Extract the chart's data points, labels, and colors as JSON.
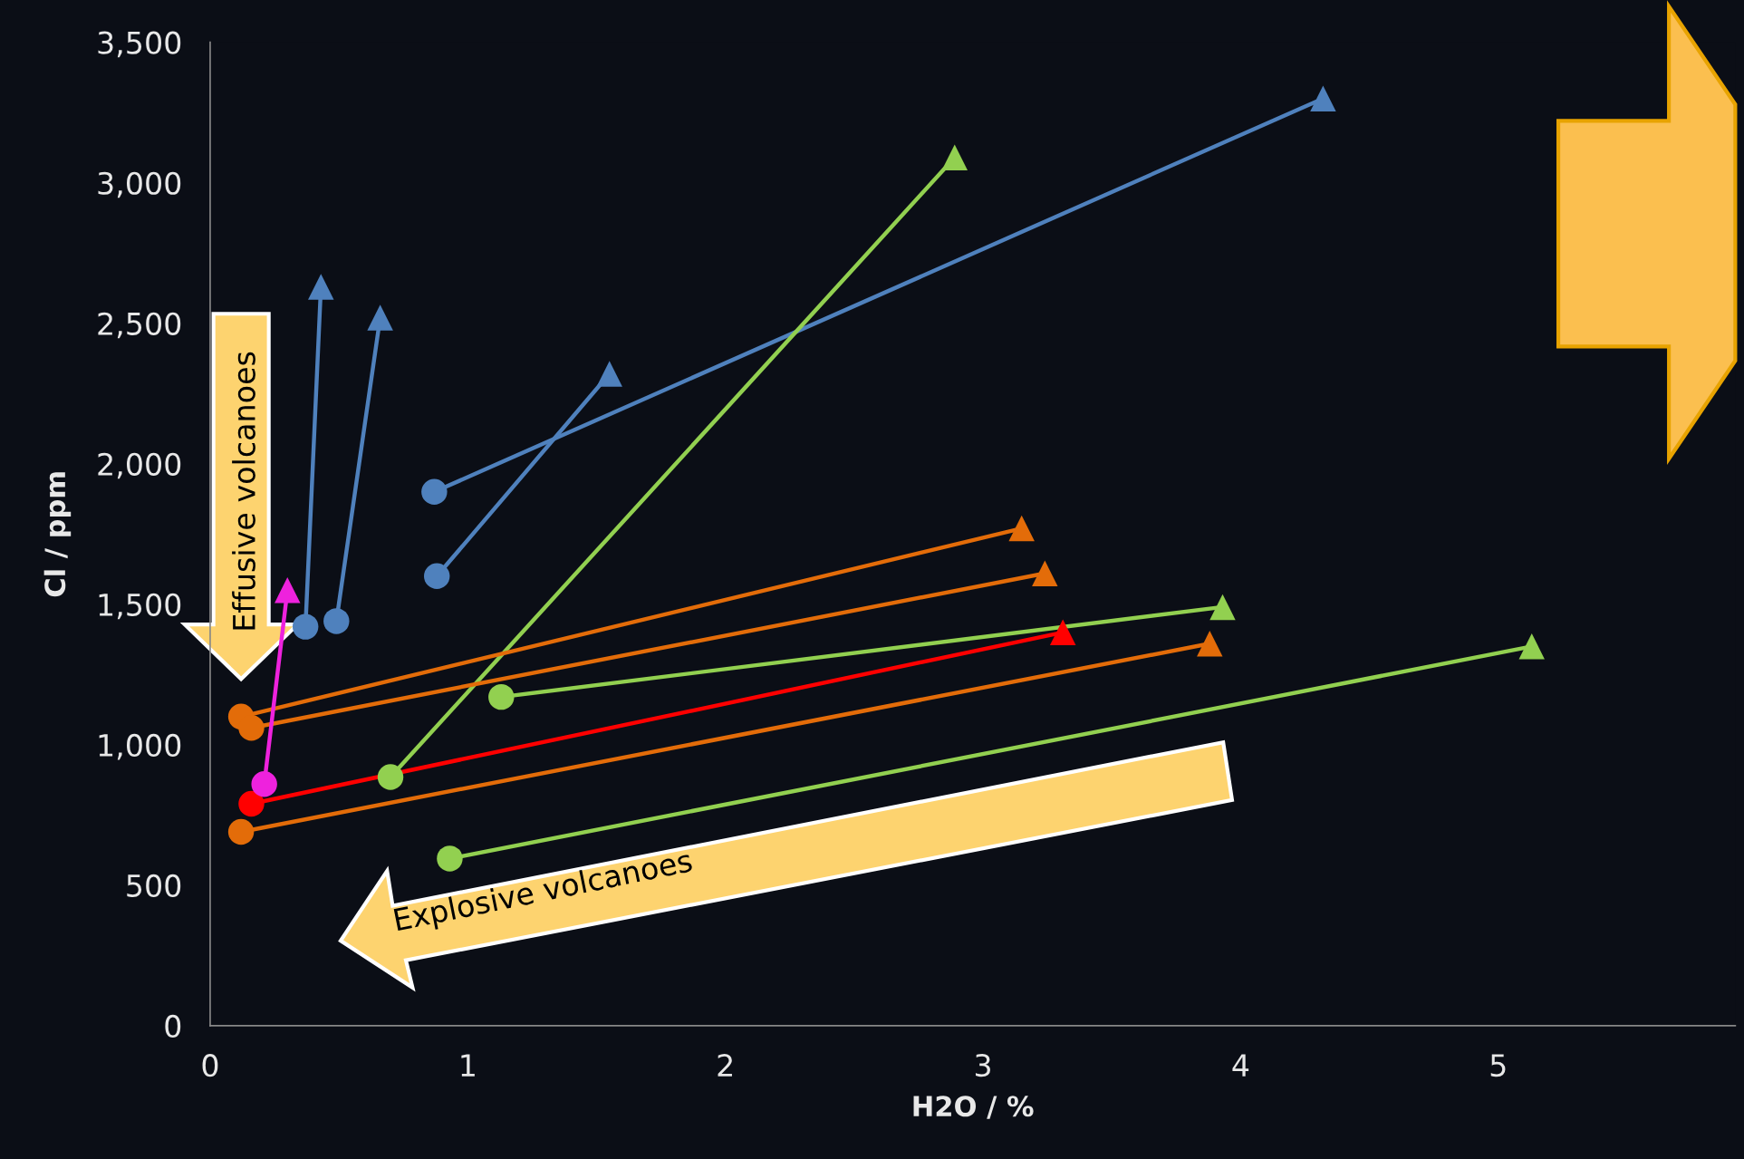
{
  "chart_data": {
    "type": "line",
    "xlabel": "H2O / %",
    "ylabel": "Cl / ppm",
    "xlim": [
      0,
      5.92
    ],
    "xticks": [
      0,
      1,
      2,
      3,
      4,
      5
    ],
    "ylim": [
      0,
      3500
    ],
    "yticks": [
      0,
      500,
      {
        "value": 1000,
        "label": "1,000"
      },
      {
        "value": 1500,
        "label": "1,500"
      },
      {
        "value": 2000,
        "label": "2,000"
      },
      {
        "value": 2500,
        "label": "2,500"
      },
      {
        "value": 3000,
        "label": "3,000"
      },
      {
        "value": 3500,
        "label": "3,500"
      }
    ],
    "grid": false,
    "legend": false,
    "annotations": [
      "Effusive volcanoes",
      "Explosive volcanoes"
    ],
    "series": [
      {
        "marker": "none",
        "color": "#4f81bd",
        "x": [
          0.87,
          4.32
        ],
        "values": [
          1900,
          3300
        ]
      },
      {
        "marker": "none",
        "color": "#4f81bd",
        "x": [
          0.88,
          1.55
        ],
        "values": [
          1600,
          2320
        ]
      },
      {
        "marker": "none",
        "color": "#4f81bd",
        "x": [
          0.37,
          0.43
        ],
        "values": [
          1420,
          2630
        ]
      },
      {
        "marker": "none",
        "color": "#4f81bd",
        "x": [
          0.49,
          0.66
        ],
        "values": [
          1440,
          2520
        ]
      },
      {
        "marker": "none",
        "color": "#92d050",
        "x": [
          0.7,
          2.89
        ],
        "values": [
          885,
          3090
        ]
      },
      {
        "marker": "none",
        "color": "#92d050",
        "x": [
          1.13,
          3.93
        ],
        "values": [
          1170,
          1490
        ]
      },
      {
        "marker": "none",
        "color": "#92d050",
        "x": [
          0.93,
          5.13
        ],
        "values": [
          595,
          1350
        ]
      },
      {
        "marker": "none",
        "color": "#e36c09",
        "x": [
          0.12,
          3.15
        ],
        "values": [
          1100,
          1770
        ]
      },
      {
        "marker": "none",
        "color": "#e36c09",
        "x": [
          0.16,
          3.24
        ],
        "values": [
          1060,
          1610
        ]
      },
      {
        "marker": "none",
        "color": "#e36c09",
        "x": [
          0.12,
          3.88
        ],
        "values": [
          690,
          1360
        ]
      },
      {
        "marker": "none",
        "color": "#ff0000",
        "x": [
          0.16,
          3.31
        ],
        "values": [
          790,
          1400
        ]
      },
      {
        "marker": "none",
        "color": "#ee22dd",
        "x": [
          0.21,
          0.3
        ],
        "values": [
          860,
          1550
        ]
      },
      {
        "type": "scatter",
        "marker": "circle",
        "x": [
          0.87,
          0.88,
          0.37,
          0.49,
          0.7,
          1.13,
          0.93,
          0.12,
          0.16,
          0.12,
          0.16,
          0.21
        ],
        "values": [
          1900,
          1600,
          1420,
          1440,
          885,
          1170,
          595,
          1100,
          1060,
          690,
          790,
          860
        ],
        "colors": [
          "#4f81bd",
          "#4f81bd",
          "#4f81bd",
          "#4f81bd",
          "#92d050",
          "#92d050",
          "#92d050",
          "#e36c09",
          "#e36c09",
          "#e36c09",
          "#ff0000",
          "#ee22dd"
        ]
      },
      {
        "type": "scatter",
        "marker": "triangle",
        "x": [
          4.32,
          1.55,
          0.43,
          0.66,
          2.89,
          3.93,
          5.13,
          3.15,
          3.24,
          3.88,
          3.31,
          0.3
        ],
        "values": [
          3300,
          2320,
          2630,
          2520,
          3090,
          1490,
          1350,
          1770,
          1610,
          1360,
          1400,
          1550
        ],
        "colors": [
          "#4f81bd",
          "#4f81bd",
          "#4f81bd",
          "#4f81bd",
          "#92d050",
          "#92d050",
          "#92d050",
          "#e36c09",
          "#e36c09",
          "#e36c09",
          "#ff0000",
          "#ee22dd"
        ]
      }
    ]
  }
}
